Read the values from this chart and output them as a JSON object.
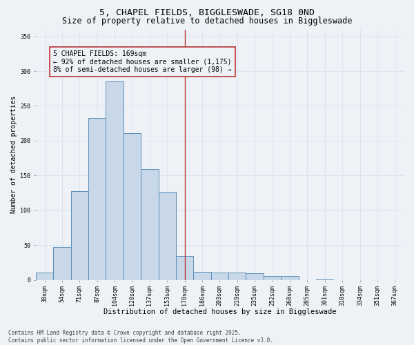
{
  "title": "5, CHAPEL FIELDS, BIGGLESWADE, SG18 0ND",
  "subtitle": "Size of property relative to detached houses in Biggleswade",
  "xlabel": "Distribution of detached houses by size in Biggleswade",
  "ylabel": "Number of detached properties",
  "categories": [
    "38sqm",
    "54sqm",
    "71sqm",
    "87sqm",
    "104sqm",
    "120sqm",
    "137sqm",
    "153sqm",
    "170sqm",
    "186sqm",
    "203sqm",
    "219sqm",
    "235sqm",
    "252sqm",
    "268sqm",
    "285sqm",
    "301sqm",
    "318sqm",
    "334sqm",
    "351sqm",
    "367sqm"
  ],
  "values": [
    11,
    47,
    128,
    233,
    285,
    211,
    159,
    127,
    34,
    12,
    11,
    11,
    10,
    6,
    6,
    0,
    1,
    0,
    0,
    0,
    0
  ],
  "bar_color": "#c8d8e8",
  "bar_edge_color": "#5b8db8",
  "grid_color": "#d8e4f0",
  "background_color": "#eef2f7",
  "vline_x_index": 8,
  "vline_color": "#bb3333",
  "annotation_text": "5 CHAPEL FIELDS: 169sqm\n← 92% of detached houses are smaller (1,175)\n8% of semi-detached houses are larger (98) →",
  "annotation_box_color": "#bb3333",
  "ylim": [
    0,
    360
  ],
  "yticks": [
    0,
    50,
    100,
    150,
    200,
    250,
    300,
    350
  ],
  "footer_text": "Contains HM Land Registry data © Crown copyright and database right 2025.\nContains public sector information licensed under the Open Government Licence v3.0.",
  "title_fontsize": 9.5,
  "subtitle_fontsize": 8.5,
  "xlabel_fontsize": 7.5,
  "ylabel_fontsize": 7.0,
  "tick_fontsize": 6.0,
  "annotation_fontsize": 7.0,
  "footer_fontsize": 5.5
}
